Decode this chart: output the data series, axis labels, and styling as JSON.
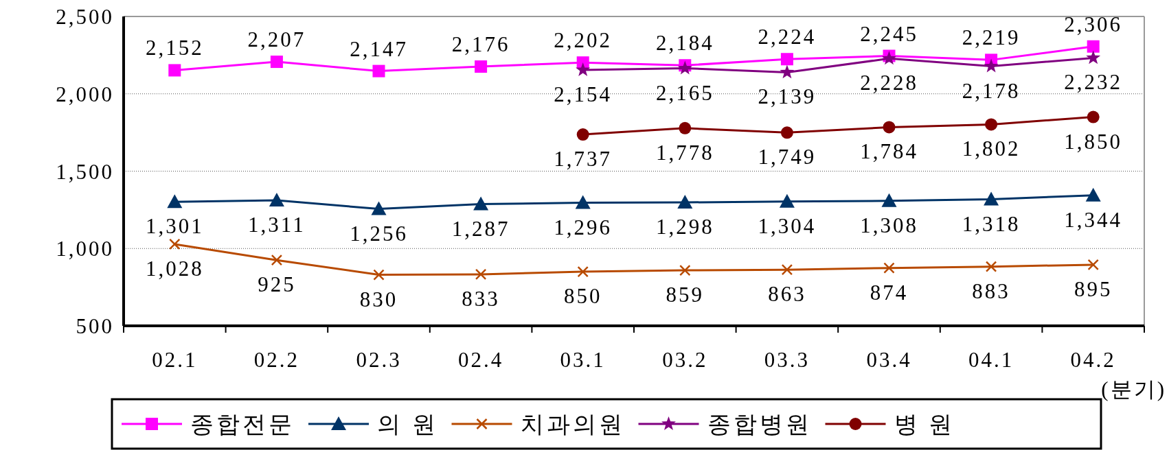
{
  "chart_data": {
    "type": "line",
    "xlabel": "(분기)",
    "categories": [
      "02.1",
      "02.2",
      "02.3",
      "02.4",
      "03.1",
      "03.2",
      "03.3",
      "03.4",
      "04.1",
      "04.2"
    ],
    "ylim": [
      500,
      2500
    ],
    "yticks": [
      {
        "value": 500,
        "label": "500"
      },
      {
        "value": 1000,
        "label": "1,000"
      },
      {
        "value": 1500,
        "label": "1,500"
      },
      {
        "value": 2000,
        "label": "2,000"
      },
      {
        "value": 2500,
        "label": "2,500"
      }
    ],
    "grid": "y",
    "legend": "bottom",
    "series": [
      {
        "name": "종합전문",
        "color": "#ff00ff",
        "marker": "square",
        "values": [
          2152,
          2207,
          2147,
          2176,
          2202,
          2184,
          2224,
          2245,
          2219,
          2306
        ],
        "value_labels": [
          "2,152",
          "2,207",
          "2,147",
          "2,176",
          "2,202",
          "2,184",
          "2,224",
          "2,245",
          "2,219",
          "2,306"
        ]
      },
      {
        "name": "의 원",
        "color": "#003366",
        "marker": "triangle",
        "values": [
          1301,
          1311,
          1256,
          1287,
          1296,
          1298,
          1304,
          1308,
          1318,
          1344
        ],
        "value_labels": [
          "1,301",
          "1,311",
          "1,256",
          "1,287",
          "1,296",
          "1,298",
          "1,304",
          "1,308",
          "1,318",
          "1,344"
        ]
      },
      {
        "name": "치과의원",
        "color": "#b84a00",
        "marker": "cross",
        "values": [
          1028,
          925,
          830,
          833,
          850,
          859,
          863,
          874,
          883,
          895
        ],
        "value_labels": [
          "1,028",
          "925",
          "830",
          "833",
          "850",
          "859",
          "863",
          "874",
          "883",
          "895"
        ]
      },
      {
        "name": "종합병원",
        "color": "#800080",
        "marker": "star",
        "values": [
          null,
          null,
          null,
          null,
          2154,
          2165,
          2139,
          2228,
          2178,
          2232
        ],
        "value_labels": [
          null,
          null,
          null,
          null,
          "2,154",
          "2,165",
          "2,139",
          "2,228",
          "2,178",
          "2,232"
        ]
      },
      {
        "name": "병 원",
        "color": "#800000",
        "marker": "circle",
        "values": [
          null,
          null,
          null,
          null,
          1737,
          1778,
          1749,
          1784,
          1802,
          1850
        ],
        "value_labels": [
          null,
          null,
          null,
          null,
          "1,737",
          "1,778",
          "1,749",
          "1,784",
          "1,802",
          "1,850"
        ]
      }
    ]
  }
}
